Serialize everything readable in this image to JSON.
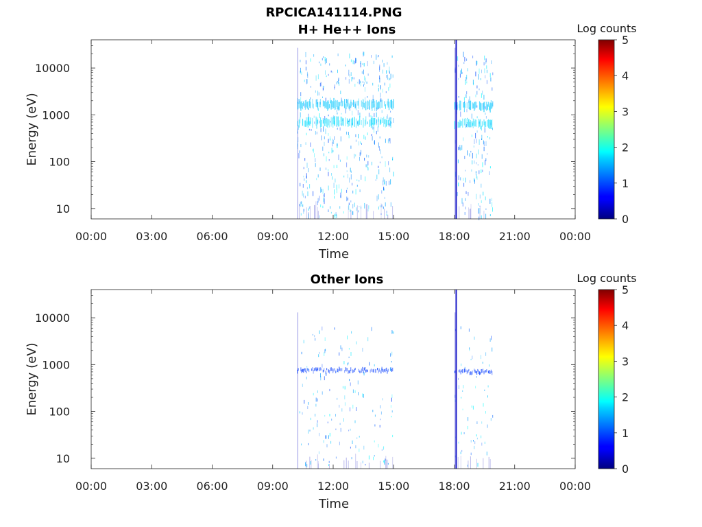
{
  "figure_title": "RPCICA141114.PNG",
  "chart_data": [
    {
      "type": "heatmap",
      "title": "H+ He++ Ions",
      "xlabel": "Time",
      "ylabel": "Energy (eV)",
      "x_ticks": [
        "00:00",
        "03:00",
        "06:00",
        "09:00",
        "12:00",
        "15:00",
        "18:00",
        "21:00",
        "00:00"
      ],
      "x_tick_hours": [
        0,
        3,
        6,
        9,
        12,
        15,
        18,
        21,
        24
      ],
      "xlim_hours": [
        0,
        24
      ],
      "y_scale": "log",
      "y_ticks": [
        "10",
        "100",
        "1000",
        "10000"
      ],
      "y_tick_values": [
        10,
        100,
        1000,
        10000
      ],
      "ylim": [
        6,
        40000
      ],
      "colorbar": {
        "label": "Log counts",
        "ticks": [
          "0",
          "1",
          "2",
          "3",
          "4",
          "5"
        ],
        "range": [
          0,
          5
        ],
        "colormap": "jet"
      },
      "data_intervals_hours": [
        [
          10.2,
          15.0
        ],
        [
          18.0,
          19.9
        ]
      ],
      "bands": [
        {
          "t_start": 10.2,
          "t_end": 15.0,
          "energy_eV": 1650,
          "log_counts": 1.6
        },
        {
          "t_start": 10.2,
          "t_end": 15.0,
          "energy_eV": 700,
          "log_counts": 1.7
        },
        {
          "t_start": 18.0,
          "t_end": 19.9,
          "energy_eV": 1550,
          "log_counts": 1.6
        },
        {
          "t_start": 18.0,
          "t_end": 19.9,
          "energy_eV": 650,
          "log_counts": 1.7
        }
      ],
      "vertical_line_hours": 18.1,
      "vertical_line_color": "#1a1ac8"
    },
    {
      "type": "heatmap",
      "title": "Other Ions",
      "xlabel": "Time",
      "ylabel": "Energy (eV)",
      "x_ticks": [
        "00:00",
        "03:00",
        "06:00",
        "09:00",
        "12:00",
        "15:00",
        "18:00",
        "21:00",
        "00:00"
      ],
      "x_tick_hours": [
        0,
        3,
        6,
        9,
        12,
        15,
        18,
        21,
        24
      ],
      "xlim_hours": [
        0,
        24
      ],
      "y_scale": "log",
      "y_ticks": [
        "10",
        "100",
        "1000",
        "10000"
      ],
      "y_tick_values": [
        10,
        100,
        1000,
        10000
      ],
      "ylim": [
        6,
        40000
      ],
      "colorbar": {
        "label": "Log counts",
        "ticks": [
          "0",
          "1",
          "2",
          "3",
          "4",
          "5"
        ],
        "range": [
          0,
          5
        ],
        "colormap": "jet"
      },
      "data_intervals_hours": [
        [
          10.2,
          15.0
        ],
        [
          18.0,
          19.9
        ]
      ],
      "bands": [
        {
          "t_start": 10.2,
          "t_end": 15.0,
          "energy_eV": 750,
          "log_counts": 0.9
        },
        {
          "t_start": 18.0,
          "t_end": 19.9,
          "energy_eV": 700,
          "log_counts": 0.9
        }
      ],
      "vertical_line_hours": 18.1,
      "vertical_line_color": "#1a1ac8"
    }
  ]
}
